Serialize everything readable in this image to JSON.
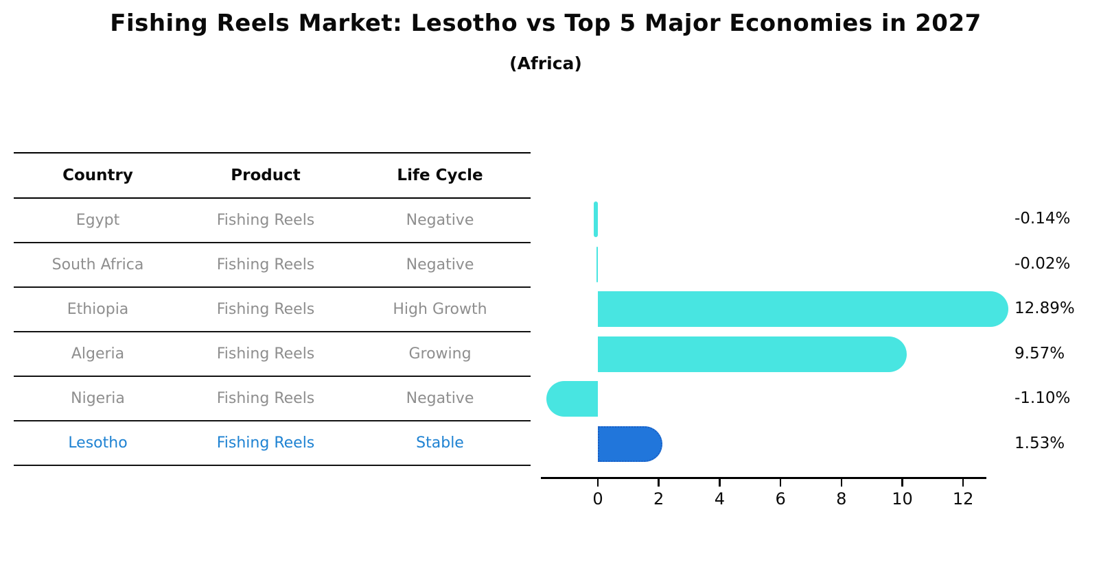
{
  "header": {
    "title": "Fishing Reels Market: Lesotho vs Top 5 Major Economies in 2027",
    "subtitle": "(Africa)"
  },
  "table": {
    "columns": [
      "Country",
      "Product",
      "Life Cycle"
    ]
  },
  "chart_data": {
    "type": "bar",
    "orientation": "horizontal",
    "title": "Fishing Reels Market: Lesotho vs Top 5 Major Economies in 2027",
    "subtitle": "(Africa)",
    "xlabel": "",
    "ylabel": "",
    "x_ticks": [
      0,
      2,
      4,
      6,
      8,
      10,
      12
    ],
    "xlim": [
      -1.9,
      12.8
    ],
    "grid": false,
    "legend": "none",
    "rows": [
      {
        "country": "Egypt",
        "product": "Fishing Reels",
        "life_cycle": "Negative",
        "value": -0.14,
        "value_label": "-0.14%",
        "highlight": false
      },
      {
        "country": "South Africa",
        "product": "Fishing Reels",
        "life_cycle": "Negative",
        "value": -0.02,
        "value_label": "-0.02%",
        "highlight": false
      },
      {
        "country": "Ethiopia",
        "product": "Fishing Reels",
        "life_cycle": "High Growth",
        "value": 12.89,
        "value_label": "12.89%",
        "highlight": false
      },
      {
        "country": "Algeria",
        "product": "Fishing Reels",
        "life_cycle": "Growing",
        "value": 9.57,
        "value_label": "9.57%",
        "highlight": false
      },
      {
        "country": "Nigeria",
        "product": "Fishing Reels",
        "life_cycle": "Negative",
        "value": -1.1,
        "value_label": "-1.10%",
        "highlight": false
      },
      {
        "country": "Lesotho",
        "product": "Fishing Reels",
        "life_cycle": "Stable",
        "value": 1.53,
        "value_label": "1.53%",
        "highlight": true
      }
    ],
    "colors": {
      "bar": "#48E5E1",
      "highlight_bar": "#2176DB",
      "highlight_border": "#1A5FC4",
      "highlight_text": "#1E82D2",
      "muted_text": "#8E8E8E",
      "axis": "#000000"
    }
  }
}
